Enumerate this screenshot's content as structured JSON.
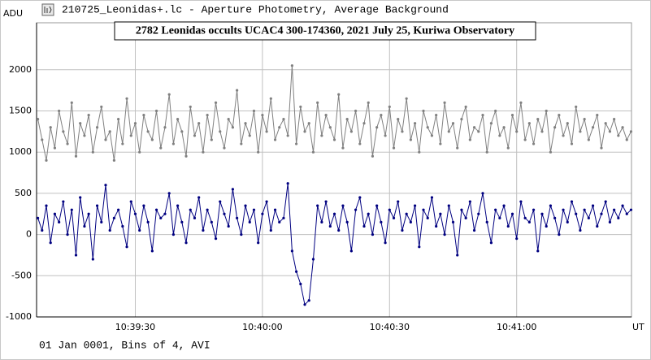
{
  "header": {
    "title": "210725_Leonidas+.lc - Aperture Photometry, Average Background"
  },
  "footer": {
    "text": "01 Jan 0001, Bins of 4, AVI"
  },
  "chart_data": {
    "type": "line",
    "title": "2782 Leonidas occults UCAC4 300-174360, 2021 July 25, Kuriwa Observatory",
    "y_label": "ADU",
    "x_label": "UT",
    "xlim": [
      6.7,
      147.1
    ],
    "xticks": [
      {
        "value": 30,
        "label": "10:39:30"
      },
      {
        "value": 60,
        "label": "10:40:00"
      },
      {
        "value": 90,
        "label": "10:40:30"
      },
      {
        "value": 120,
        "label": "10:41:00"
      }
    ],
    "ylim": [
      -1000,
      2570
    ],
    "yticks": [
      2000,
      1500,
      1000,
      500,
      0,
      -500,
      -1000
    ],
    "grid": true,
    "x": [
      7,
      8,
      9,
      10,
      11,
      12,
      13,
      14,
      15,
      16,
      17,
      18,
      19,
      20,
      21,
      22,
      23,
      24,
      25,
      26,
      27,
      28,
      29,
      30,
      31,
      32,
      33,
      34,
      35,
      36,
      37,
      38,
      39,
      40,
      41,
      42,
      43,
      44,
      45,
      46,
      47,
      48,
      49,
      50,
      51,
      52,
      53,
      54,
      55,
      56,
      57,
      58,
      59,
      60,
      61,
      62,
      63,
      64,
      65,
      66,
      67,
      68,
      69,
      70,
      71,
      72,
      73,
      74,
      75,
      76,
      77,
      78,
      79,
      80,
      81,
      82,
      83,
      84,
      85,
      86,
      87,
      88,
      89,
      90,
      91,
      92,
      93,
      94,
      95,
      96,
      97,
      98,
      99,
      100,
      101,
      102,
      103,
      104,
      105,
      106,
      107,
      108,
      109,
      110,
      111,
      112,
      113,
      114,
      115,
      116,
      117,
      118,
      119,
      120,
      121,
      122,
      123,
      124,
      125,
      126,
      127,
      128,
      129,
      130,
      131,
      132,
      133,
      134,
      135,
      136,
      137,
      138,
      139,
      140,
      141,
      142,
      143,
      144,
      145,
      146,
      147
    ],
    "series": [
      {
        "color": "#808080",
        "values": [
          1400,
          1150,
          900,
          1300,
          1050,
          1500,
          1250,
          1100,
          1600,
          950,
          1350,
          1200,
          1450,
          1000,
          1300,
          1550,
          1150,
          1250,
          900,
          1400,
          1100,
          1650,
          1200,
          1350,
          1000,
          1450,
          1250,
          1150,
          1500,
          1050,
          1300,
          1700,
          1100,
          1400,
          1250,
          950,
          1550,
          1200,
          1350,
          1000,
          1450,
          1150,
          1600,
          1250,
          1050,
          1400,
          1300,
          1750,
          1100,
          1350,
          1200,
          1500,
          1000,
          1450,
          1250,
          1650,
          1150,
          1300,
          1400,
          1200,
          2050,
          1100,
          1550,
          1250,
          1350,
          1000,
          1600,
          1200,
          1450,
          1300,
          1150,
          1700,
          1050,
          1400,
          1250,
          1500,
          1100,
          1350,
          1600,
          950,
          1300,
          1450,
          1200,
          1550,
          1050,
          1400,
          1250,
          1650,
          1150,
          1350,
          1000,
          1500,
          1300,
          1200,
          1450,
          1100,
          1600,
          1250,
          1350,
          1050,
          1400,
          1550,
          1150,
          1300,
          1250,
          1450,
          1000,
          1350,
          1500,
          1200,
          1300,
          1050,
          1450,
          1250,
          1600,
          1150,
          1350,
          1100,
          1400,
          1250,
          1500,
          1000,
          1300,
          1450,
          1200,
          1350,
          1100,
          1550,
          1250,
          1400,
          1150,
          1300,
          1450,
          1050,
          1350,
          1250,
          1400,
          1200,
          1300,
          1150,
          1250
        ]
      },
      {
        "color": "#000080",
        "values": [
          200,
          50,
          350,
          -100,
          250,
          150,
          400,
          0,
          300,
          -250,
          450,
          100,
          250,
          -300,
          350,
          150,
          600,
          50,
          200,
          300,
          100,
          -150,
          400,
          250,
          50,
          350,
          150,
          -200,
          300,
          200,
          250,
          500,
          0,
          350,
          150,
          -100,
          300,
          200,
          450,
          50,
          300,
          150,
          -50,
          400,
          250,
          100,
          550,
          200,
          0,
          350,
          150,
          300,
          -100,
          250,
          400,
          50,
          300,
          150,
          200,
          620,
          -200,
          -450,
          -600,
          -850,
          -800,
          -300,
          350,
          150,
          400,
          100,
          250,
          50,
          350,
          150,
          -200,
          300,
          450,
          100,
          250,
          0,
          350,
          150,
          -100,
          300,
          200,
          400,
          50,
          250,
          150,
          350,
          -150,
          300,
          200,
          450,
          100,
          250,
          0,
          350,
          150,
          -250,
          300,
          200,
          400,
          50,
          250,
          500,
          150,
          -100,
          300,
          200,
          350,
          100,
          250,
          -50,
          400,
          200,
          150,
          300,
          -200,
          250,
          100,
          350,
          200,
          0,
          300,
          150,
          400,
          250,
          50,
          300,
          200,
          350,
          100,
          250,
          400,
          150,
          300,
          200,
          350,
          250,
          300
        ]
      }
    ]
  }
}
